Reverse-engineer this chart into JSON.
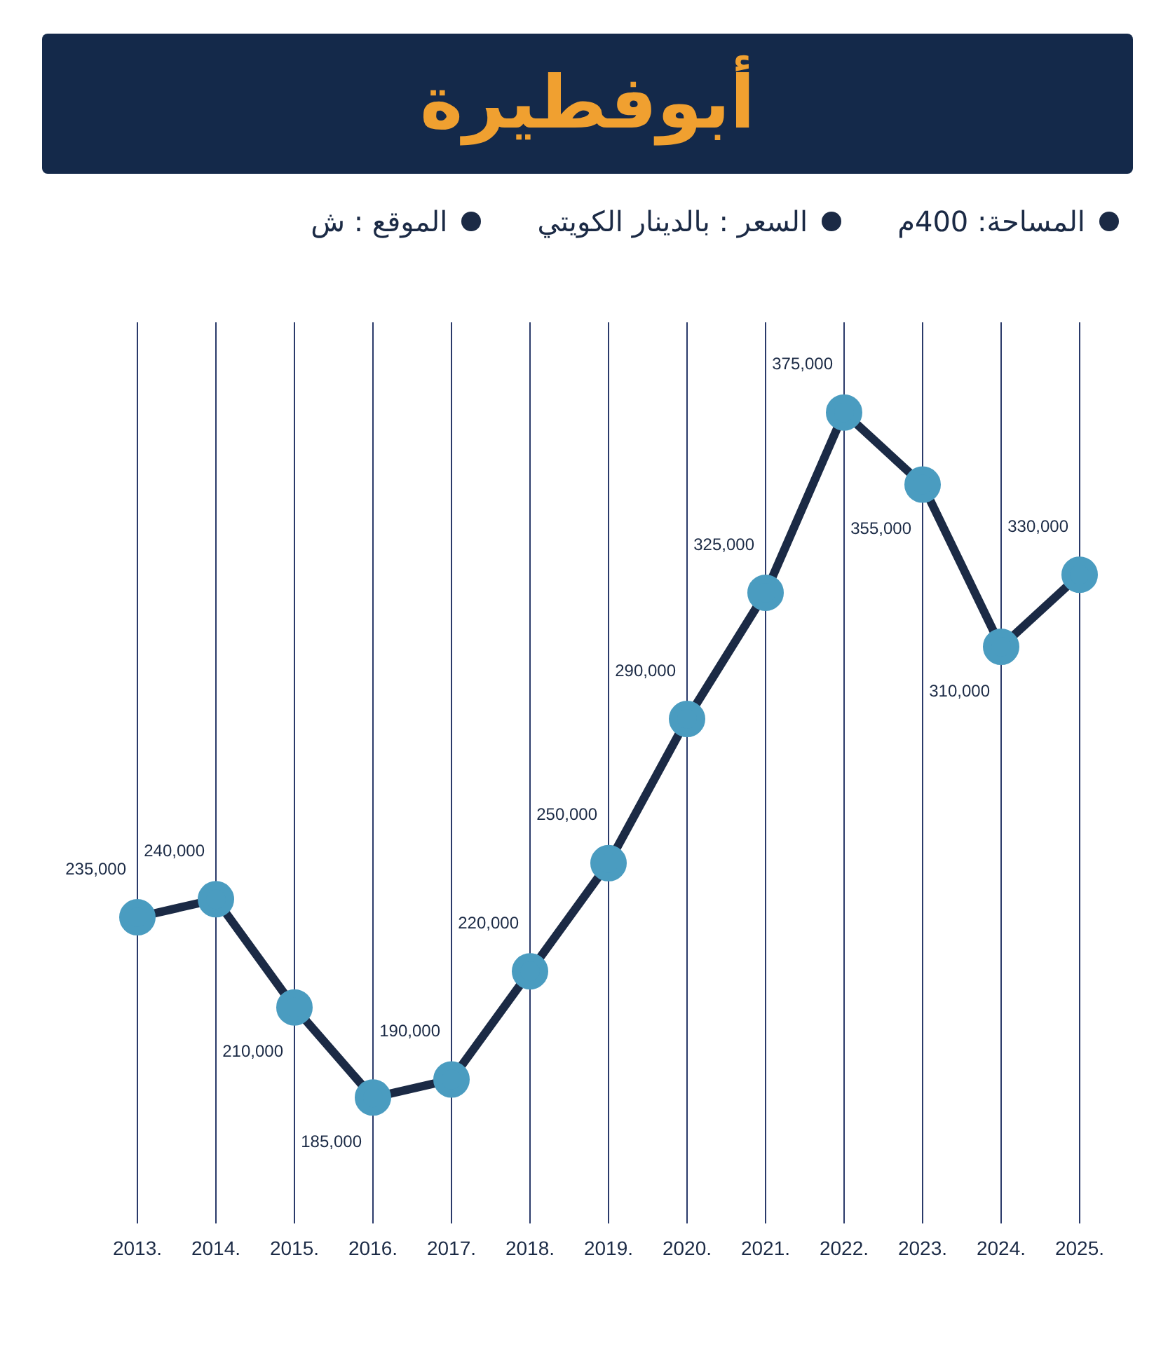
{
  "chart_data": {
    "type": "line",
    "title": "أبوفطيرة",
    "annotations": [
      "المساحة: 400م",
      "السعر : بالدينار الكويتي",
      "الموقع : ش"
    ],
    "categories": [
      "2013.",
      "2014.",
      "2015.",
      "2016.",
      "2017.",
      "2018.",
      "2019.",
      "2020.",
      "2021.",
      "2022.",
      "2023.",
      "2024.",
      "2025."
    ],
    "series": [
      {
        "color": "#1b2a45",
        "values": [
          235000,
          240000,
          210000,
          185000,
          190000,
          220000,
          250000,
          290000,
          325000,
          375000,
          355000,
          310000,
          330000
        ],
        "value_labels": [
          "235,000",
          "240,000",
          "210,000",
          "185,000",
          "190,000",
          "220,000",
          "250,000",
          "290,000",
          "325,000",
          "375,000",
          "355,000",
          "310,000",
          "330,000"
        ]
      }
    ],
    "marker": "circle",
    "grid": "x",
    "tick_labels": "x",
    "legend": false
  }
}
